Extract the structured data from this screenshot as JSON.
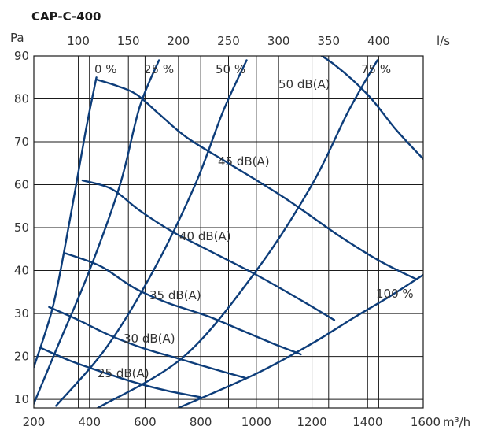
{
  "chart_data": {
    "type": "line",
    "title": "CAP-C-400",
    "ylabel": "Pa",
    "xlabel": "m³/h",
    "top_axis_label": "l/s",
    "xlim": [
      200,
      1600
    ],
    "ylim": [
      8,
      90
    ],
    "grid": true,
    "x_ticks": [
      "200",
      "400",
      "600",
      "800",
      "1000",
      "1200",
      "1400",
      "1600"
    ],
    "y_ticks": [
      "10",
      "20",
      "30",
      "40",
      "50",
      "60",
      "70",
      "80",
      "90"
    ],
    "top_ticks": [
      {
        "label": "100",
        "value": 100
      },
      {
        "label": "150",
        "value": 150
      },
      {
        "label": "200",
        "value": 200
      },
      {
        "label": "250",
        "value": 250
      },
      {
        "label": "300",
        "value": 300
      },
      {
        "label": "350",
        "value": 350
      },
      {
        "label": "400",
        "value": 400
      }
    ],
    "damper_curves": [
      {
        "label": "0 %",
        "points": [
          [
            200,
            17.5
          ],
          [
            270,
            32
          ],
          [
            330,
            52
          ],
          [
            385,
            72
          ],
          [
            425,
            85
          ]
        ]
      },
      {
        "label": "25 %",
        "points": [
          [
            200,
            9
          ],
          [
            290,
            23
          ],
          [
            400,
            40
          ],
          [
            510,
            60
          ],
          [
            580,
            78
          ],
          [
            650,
            89
          ]
        ]
      },
      {
        "label": "50 %",
        "points": [
          [
            280,
            8.5
          ],
          [
            460,
            22
          ],
          [
            630,
            40
          ],
          [
            780,
            60
          ],
          [
            880,
            77
          ],
          [
            965,
            89
          ]
        ]
      },
      {
        "label": "75 %",
        "points": [
          [
            430,
            8
          ],
          [
            740,
            20
          ],
          [
            1000,
            40
          ],
          [
            1200,
            60
          ],
          [
            1330,
            77
          ],
          [
            1435,
            89
          ]
        ]
      },
      {
        "label": "100 %",
        "points": [
          [
            720,
            8
          ],
          [
            1000,
            16
          ],
          [
            1200,
            23
          ],
          [
            1350,
            29
          ],
          [
            1480,
            34
          ],
          [
            1600,
            39
          ]
        ]
      }
    ],
    "sound_curves": [
      {
        "label": "25 dB(A)",
        "points": [
          [
            225,
            22
          ],
          [
            330,
            19
          ],
          [
            440,
            16.5
          ],
          [
            560,
            14
          ],
          [
            680,
            12
          ],
          [
            800,
            10.5
          ]
        ]
      },
      {
        "label": "30 dB(A)",
        "points": [
          [
            255,
            31.5
          ],
          [
            360,
            28.5
          ],
          [
            470,
            25
          ],
          [
            590,
            22
          ],
          [
            720,
            19.5
          ],
          [
            850,
            17
          ],
          [
            960,
            15
          ]
        ]
      },
      {
        "label": "35 dB(A)",
        "points": [
          [
            315,
            44
          ],
          [
            440,
            41
          ],
          [
            560,
            36
          ],
          [
            680,
            32.5
          ],
          [
            820,
            29.5
          ],
          [
            950,
            26
          ],
          [
            1060,
            23
          ],
          [
            1160,
            20.5
          ]
        ]
      },
      {
        "label": "40 dB(A)",
        "points": [
          [
            375,
            61
          ],
          [
            480,
            59
          ],
          [
            580,
            54
          ],
          [
            700,
            49
          ],
          [
            820,
            45
          ],
          [
            1000,
            39
          ],
          [
            1150,
            33.5
          ],
          [
            1280,
            28.5
          ]
        ]
      },
      {
        "label": "45 dB(A)",
        "points": [
          [
            425,
            84.5
          ],
          [
            500,
            83
          ],
          [
            570,
            81
          ],
          [
            650,
            76.5
          ],
          [
            750,
            71
          ],
          [
            900,
            65
          ],
          [
            1100,
            57
          ],
          [
            1300,
            48
          ],
          [
            1450,
            42
          ],
          [
            1575,
            38
          ]
        ]
      },
      {
        "label": "50 dB(A)",
        "points": [
          [
            1160,
            93
          ],
          [
            1280,
            88
          ],
          [
            1400,
            81
          ],
          [
            1500,
            73
          ],
          [
            1600,
            66
          ]
        ]
      }
    ]
  }
}
